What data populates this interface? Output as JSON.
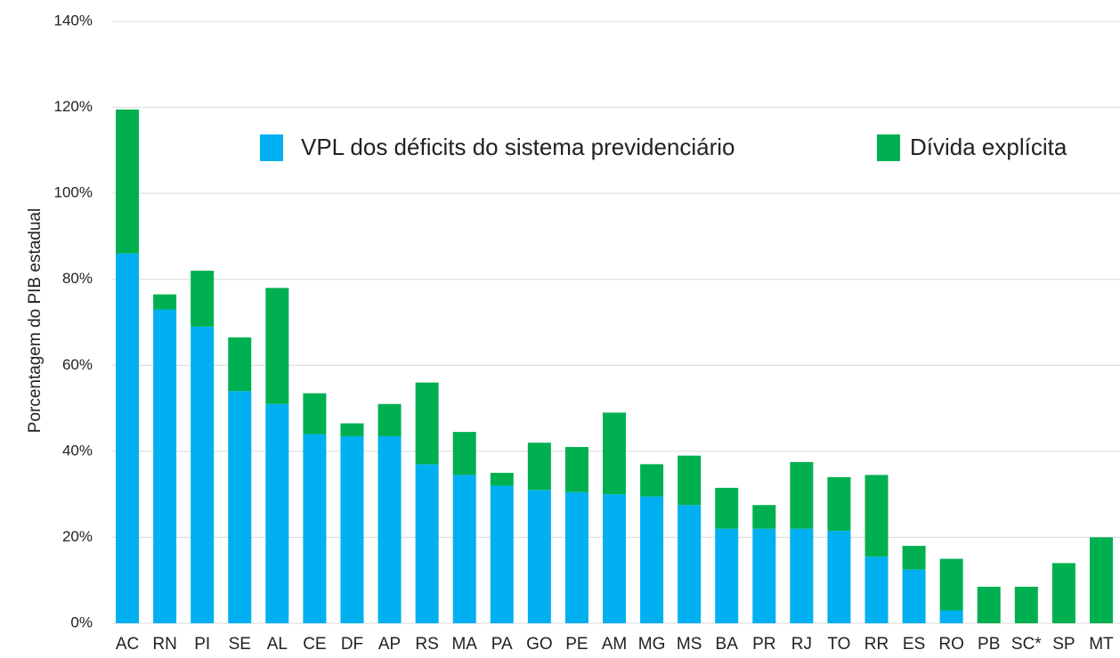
{
  "chart_data": {
    "type": "stacked_bar",
    "y_axis_label": "Porcentagem do PIB estadual",
    "categories": [
      "AC",
      "RN",
      "PI",
      "SE",
      "AL",
      "CE",
      "DF",
      "AP",
      "RS",
      "MA",
      "PA",
      "GO",
      "PE",
      "AM",
      "MG",
      "MS",
      "BA",
      "PR",
      "RJ",
      "TO",
      "RR",
      "ES",
      "RO",
      "PB",
      "SC*",
      "SP",
      "MT"
    ],
    "series": [
      {
        "name": "VPL dos déficits do sistema previdenciário",
        "color": "#00b0f0",
        "values": [
          86,
          73,
          69,
          54,
          51,
          44,
          43.5,
          43.5,
          37,
          34.5,
          32,
          31,
          30.5,
          30,
          29.5,
          27.5,
          22,
          22,
          22,
          21.5,
          15.5,
          12.5,
          3,
          0,
          0,
          0,
          0
        ]
      },
      {
        "name": "Dívida explícita",
        "color": "#00b050",
        "values": [
          33.5,
          3.5,
          13,
          12.5,
          27,
          9.5,
          3,
          7.5,
          19,
          10,
          3,
          11,
          10.5,
          19,
          7.5,
          11.5,
          9.5,
          5.5,
          15.5,
          12.5,
          19,
          5.5,
          12,
          8.5,
          8.5,
          14,
          20
        ]
      }
    ],
    "ylim": [
      0,
      140
    ],
    "yticks": [
      {
        "value": 0,
        "label": "0%"
      },
      {
        "value": 20,
        "label": "20%"
      },
      {
        "value": 40,
        "label": "40%"
      },
      {
        "value": 60,
        "label": "60%"
      },
      {
        "value": 80,
        "label": "80%"
      },
      {
        "value": 100,
        "label": "100%"
      },
      {
        "value": 120,
        "label": "120%"
      },
      {
        "value": 140,
        "label": "140%"
      }
    ],
    "grid": true
  }
}
